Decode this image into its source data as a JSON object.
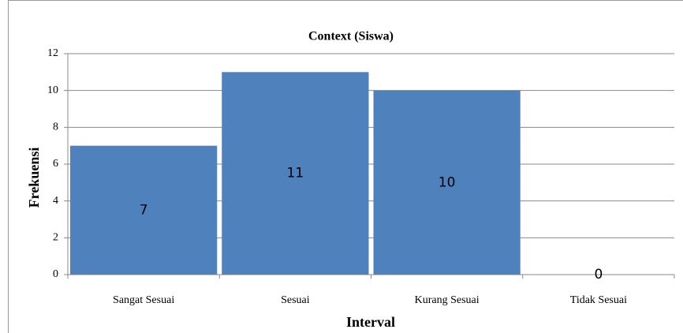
{
  "chart_data": {
    "type": "bar",
    "title": "Context (Siswa)",
    "x_label": "Interval",
    "y_label": "Frekuensi",
    "categories": [
      "Sangat Sesuai",
      "Sesuai",
      "Kurang Sesuai",
      "Tidak Sesuai"
    ],
    "values": [
      7,
      11,
      10,
      0
    ],
    "color": "#4f81bd",
    "ylim": [
      0,
      12
    ],
    "yticks": [
      0,
      2,
      4,
      6,
      8,
      10,
      12
    ],
    "grid": true
  }
}
